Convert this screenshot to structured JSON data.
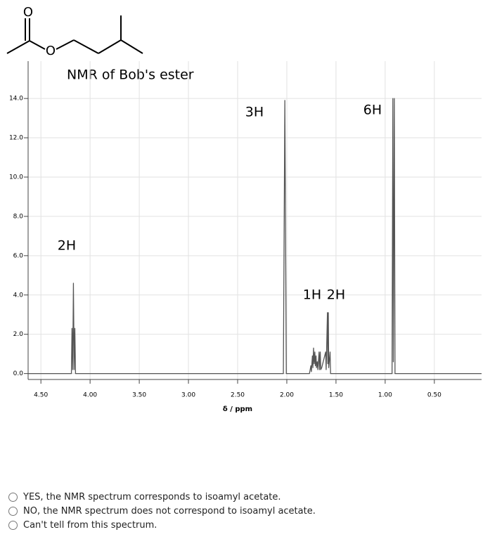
{
  "molecule": {
    "atoms": [
      "O",
      "O"
    ]
  },
  "chart_data": {
    "type": "line",
    "title": "NMR of Bob's ester",
    "x_label": "δ / ppm",
    "annotations": [
      "3H",
      "6H",
      "2H",
      "1H",
      "2H"
    ],
    "xlim": [
      4.63,
      0.02
    ],
    "ylim": [
      -0.3,
      15.9
    ],
    "xticks": [
      {
        "value": 4.5,
        "label": "4.50"
      },
      {
        "value": 4,
        "label": "4.00"
      },
      {
        "value": 3.5,
        "label": "3.50"
      },
      {
        "value": 3,
        "label": "3.00"
      },
      {
        "value": 2.5,
        "label": "2.50"
      },
      {
        "value": 2,
        "label": "2.00"
      },
      {
        "value": 1.5,
        "label": "1.50"
      },
      {
        "value": 1,
        "label": "1.00"
      },
      {
        "value": 0.5,
        "label": "0.50"
      }
    ],
    "yticks": [
      {
        "value": 0,
        "label": "0.0"
      },
      {
        "value": 2,
        "label": "2.0"
      },
      {
        "value": 4,
        "label": "4.0"
      },
      {
        "value": 6,
        "label": "6.0"
      },
      {
        "value": 8,
        "label": "8.0"
      },
      {
        "value": 10,
        "label": "10.0"
      },
      {
        "value": 12,
        "label": "12.0"
      },
      {
        "value": 14,
        "label": "14.0"
      }
    ],
    "grid": true,
    "series": [
      {
        "name": "spectrum",
        "color": "#555555",
        "x": [
          4.63,
          4.19,
          4.184,
          4.1765,
          4.1695,
          4.162,
          4.155,
          4.148,
          2.035,
          2.02,
          2.005,
          1.77,
          1.755,
          1.75,
          1.74,
          1.735,
          1.728,
          1.722,
          1.715,
          1.71,
          1.703,
          1.698,
          1.69,
          1.684,
          1.672,
          1.667,
          1.66,
          1.655,
          1.645,
          1.605,
          1.6,
          1.587,
          1.583,
          1.578,
          1.574,
          1.56,
          1.555,
          0.93,
          0.922,
          0.917,
          0.907,
          0.9,
          0.02
        ],
        "values": [
          0,
          0,
          2.3,
          0.2,
          4.6,
          0.2,
          2.3,
          0,
          0,
          13.9,
          0,
          0,
          0.4,
          0.1,
          0.9,
          0.3,
          1.3,
          0.5,
          1.1,
          0.4,
          0.9,
          0.3,
          0.6,
          0.2,
          1.1,
          0.2,
          1.1,
          0.2,
          0.3,
          1.1,
          0.2,
          3.1,
          0.5,
          3.1,
          0.3,
          1.1,
          0,
          0,
          14,
          0.6,
          14,
          0,
          0
        ]
      }
    ]
  },
  "question": {
    "options": [
      "YES, the NMR spectrum corresponds to isoamyl acetate.",
      "NO, the NMR spectrum does not correspond to isoamyl acetate.",
      "Can't tell from this spectrum."
    ]
  }
}
